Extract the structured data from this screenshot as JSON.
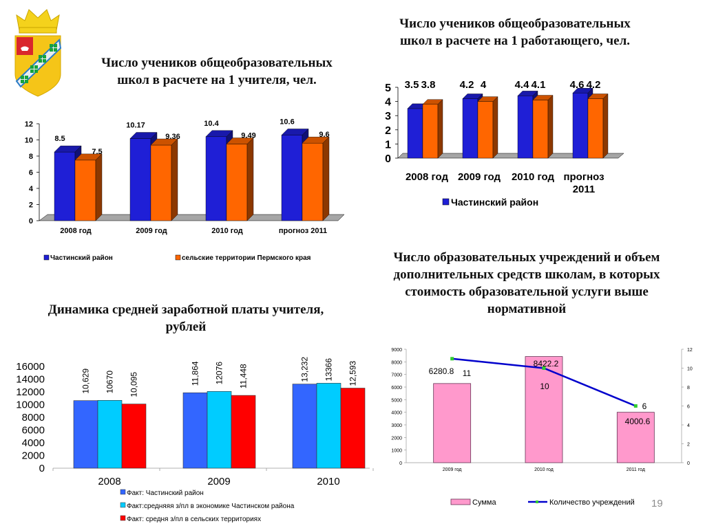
{
  "slide": {
    "number": "19"
  },
  "logo": {
    "name": "coat-of-arms"
  },
  "titles": {
    "chart1": "Число учеников общеобразовательных школ в расчете на 1 учителя, чел.",
    "chart2": "Число учеников общеобразовательных школ в расчете на 1 работающего, чел.",
    "chart3": "Динамика средней заработной платы учителя, рублей",
    "chart4": "Число образовательных учреждений и объем дополнительных средств школам, в которых стоимость образовательной услуги выше нормативной"
  },
  "title_lines": {
    "chart1": [
      "Число учеников общеобразовательных",
      "школ в расчете на 1 учителя, чел."
    ],
    "chart2": [
      "Число учеников общеобразовательных",
      "школ в расчете на 1 работающего, чел."
    ],
    "chart3": [
      "Динамика средней заработной платы учителя,",
      "рублей"
    ],
    "chart4": [
      "Число образовательных учреждений и объем",
      "дополнительных средств школам, в которых",
      "стоимость образовательной услуги выше",
      "нормативной"
    ]
  },
  "chart_data": [
    {
      "id": "students-per-teacher",
      "type": "bar",
      "title": "Число учеников общеобразовательных школ в расчете на 1 учителя, чел.",
      "categories": [
        "2008 год",
        "2009 год",
        "2010 год",
        "прогноз 2011"
      ],
      "series": [
        {
          "name": "Частинский район",
          "values": [
            8.5,
            10.17,
            10.4,
            10.6
          ],
          "labels": [
            "8.5",
            "10.17",
            "10.4",
            "10.6"
          ],
          "color": "#1f1fd6"
        },
        {
          "name": "сельские территории Пермского края",
          "values": [
            7.5,
            9.36,
            9.49,
            9.6
          ],
          "labels": [
            "7.5",
            "9.36",
            "9.49",
            "9.6"
          ],
          "color": "#ff6600"
        }
      ],
      "ylim": [
        0,
        12
      ],
      "yticks": [
        "0",
        "2",
        "4",
        "6",
        "8",
        "10",
        "12"
      ],
      "legend": "bottom",
      "xlabel": "",
      "ylabel": ""
    },
    {
      "id": "students-per-employee",
      "type": "bar",
      "title": "Число учеников общеобразовательных школ в расчете на 1 работающего, чел.",
      "categories": [
        "2008 год",
        "2009 год",
        "2010 год",
        "прогноз 2011"
      ],
      "series": [
        {
          "name": "Частинский район",
          "values": [
            3.5,
            4.2,
            4.4,
            4.6
          ],
          "labels": [
            "3.5",
            "4.2",
            "4.4",
            "4.6"
          ],
          "color": "#1f1fd6"
        },
        {
          "name": "",
          "values": [
            3.8,
            4,
            4.1,
            4.2
          ],
          "labels": [
            "3.8",
            "4",
            "4.1",
            "4.2"
          ],
          "color": "#ff6600"
        }
      ],
      "ylim": [
        0,
        5
      ],
      "yticks": [
        "0",
        "1",
        "2",
        "3",
        "4",
        "5"
      ],
      "legend": "bottom",
      "xlabel": "",
      "ylabel": ""
    },
    {
      "id": "teacher-salary",
      "type": "bar",
      "title": "Динамика средней заработной платы учителя, рублей",
      "categories": [
        "2008",
        "2009",
        "2010"
      ],
      "series": [
        {
          "name": "Факт:  Частинский район",
          "values": [
            10629,
            11864,
            13232
          ],
          "labels": [
            "10,629",
            "11,864",
            "13,232"
          ],
          "color": "#3366ff"
        },
        {
          "name": "Факт:средняяя з/пл в экономике Частинском  района",
          "values": [
            10670,
            12076,
            13366
          ],
          "labels": [
            "10670",
            "12076",
            "13366"
          ],
          "color": "#00ccff"
        },
        {
          "name": "Факт: средня з/пл в сельских  территориях",
          "values": [
            10095,
            11448,
            12593
          ],
          "labels": [
            "10,095",
            "11,448",
            "12,593"
          ],
          "color": "#ff0000"
        }
      ],
      "ylim": [
        0,
        16000
      ],
      "yticks": [
        "0",
        "2000",
        "4000",
        "6000",
        "8000",
        "10000",
        "12000",
        "14000",
        "16000"
      ],
      "legend": "bottom",
      "xlabel": "",
      "ylabel": ""
    },
    {
      "id": "institutions-funding",
      "type": "bar",
      "title": "Число образовательных учреждений и объем дополнительных средств школам, в которых стоимость образовательной услуги выше нормативной",
      "categories": [
        "2009 год",
        "2010 год",
        "2011 год"
      ],
      "series": [
        {
          "name": "Сумма",
          "type": "bar",
          "axis": "left",
          "values": [
            6280.8,
            8422.2,
            4000.6
          ],
          "labels": [
            "6280.8",
            "8422.2",
            "4000.6"
          ],
          "color": "#ff99cc"
        },
        {
          "name": "Количество учреждений",
          "type": "line",
          "axis": "right",
          "values": [
            11,
            10,
            6
          ],
          "labels": [
            "11",
            "10",
            "6"
          ],
          "color": "#0000cc",
          "marker_color": "#33cc33"
        }
      ],
      "ylim": [
        0,
        9000
      ],
      "yticks": [
        "0",
        "1000",
        "2000",
        "3000",
        "4000",
        "5000",
        "6000",
        "7000",
        "8000",
        "9000"
      ],
      "y2lim": [
        0,
        12
      ],
      "y2ticks": [
        "0",
        "2",
        "4",
        "6",
        "8",
        "10",
        "12"
      ],
      "legend": "bottom",
      "xlabel": "",
      "ylabel": ""
    }
  ]
}
